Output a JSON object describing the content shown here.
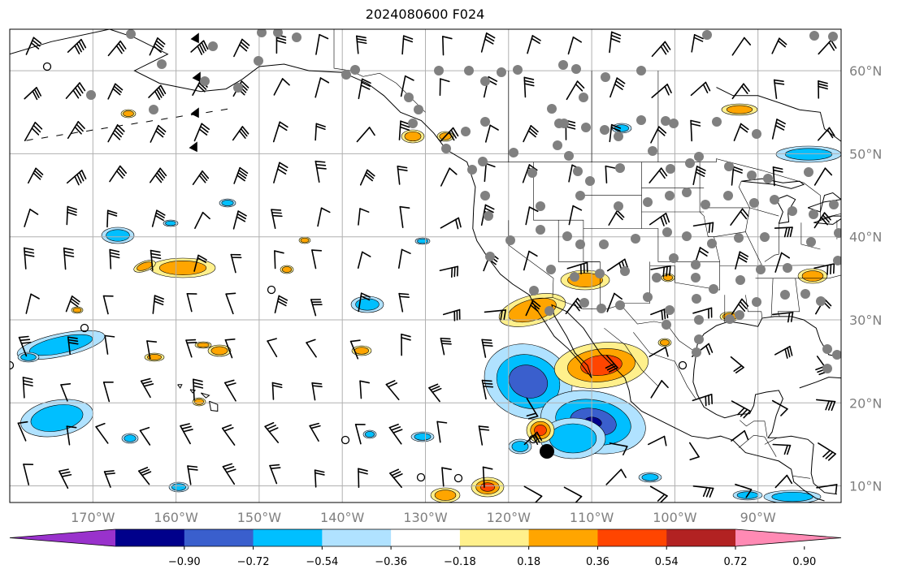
{
  "title": "2024080600 F024",
  "map": {
    "lon_range": [
      -180,
      -80
    ],
    "lat_range": [
      8,
      65
    ],
    "lat_labels": [
      {
        "lat": 60,
        "label": "60°N"
      },
      {
        "lat": 50,
        "label": "50°N"
      },
      {
        "lat": 40,
        "label": "40°N"
      },
      {
        "lat": 30,
        "label": "30°N"
      },
      {
        "lat": 20,
        "label": "20°N"
      },
      {
        "lat": 10,
        "label": "10°N"
      }
    ],
    "lon_labels": [
      {
        "lon": -170,
        "label": "170°W"
      },
      {
        "lon": -160,
        "label": "160°W"
      },
      {
        "lon": -150,
        "label": "150°W"
      },
      {
        "lon": -140,
        "label": "140°W"
      },
      {
        "lon": -130,
        "label": "130°W"
      },
      {
        "lon": -120,
        "label": "120°W"
      },
      {
        "lon": -110,
        "label": "110°W"
      },
      {
        "lon": -100,
        "label": "100°W"
      },
      {
        "lon": -90,
        "label": "90°W"
      }
    ],
    "gridline_color": "#b0b0b0",
    "coast_color": "#000000",
    "station_color": "#808080"
  },
  "colorbar": {
    "colors": [
      "#9932cc",
      "#00008b",
      "#3a5fcd",
      "#00bfff",
      "#b0e2ff",
      "#ffffff",
      "#fff08c",
      "#ffa500",
      "#ff4500",
      "#b22222",
      "#ff8ab4"
    ],
    "ticks": [
      "−0.90",
      "−0.72",
      "−0.54",
      "−0.36",
      "−0.18",
      "0.18",
      "0.36",
      "0.54",
      "0.72",
      "0.90"
    ]
  }
}
